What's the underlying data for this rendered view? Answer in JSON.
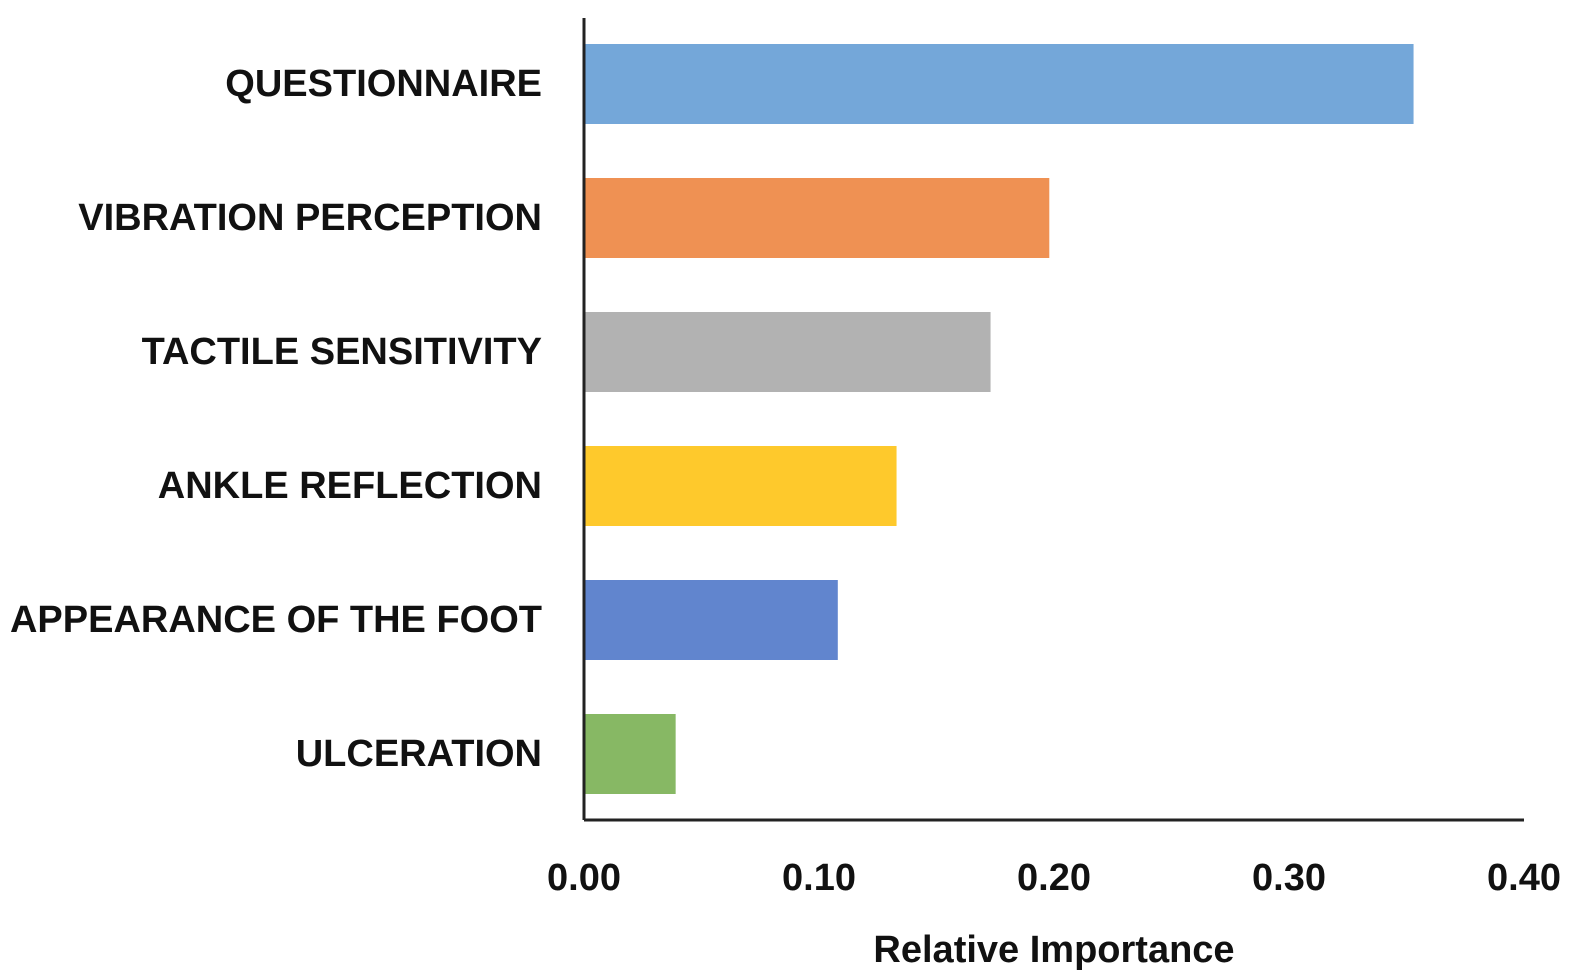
{
  "chart_data": {
    "type": "bar",
    "orientation": "horizontal",
    "title": "",
    "xlabel": "Relative Importance",
    "ylabel": "",
    "xlim": [
      0,
      0.4
    ],
    "xticks": [
      0,
      0.1,
      0.2,
      0.3,
      0.4
    ],
    "xtick_labels": [
      "0.00",
      "0.10",
      "0.20",
      "0.30",
      "0.40"
    ],
    "grid": false,
    "legend": "none",
    "categories": [
      "QUESTIONNAIRE",
      "VIBRATION PERCEPTION",
      "TACTILE SENSITIVITY",
      "ANKLE REFLECTION",
      "APPEARANCE OF THE FOOT",
      "ULCERATION"
    ],
    "values": [
      0.353,
      0.198,
      0.173,
      0.133,
      0.108,
      0.039
    ],
    "colors": [
      "#74a7d9",
      "#ef9153",
      "#b2b2b2",
      "#fec92c",
      "#6185ce",
      "#87b864"
    ]
  }
}
